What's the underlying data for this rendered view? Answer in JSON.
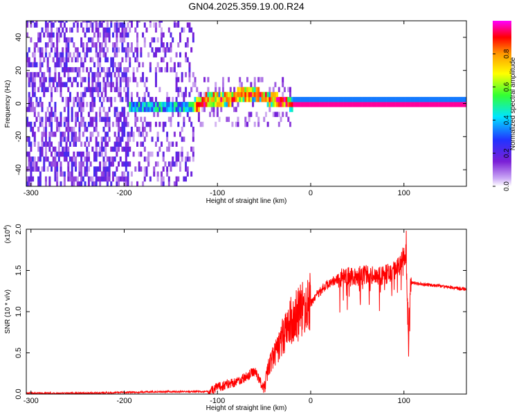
{
  "title": "GN04.2025.359.19.00.R24",
  "chart_data": [
    {
      "type": "heatmap",
      "xlabel": "Height of straight line (km)",
      "ylabel": "Frequency (Hz)",
      "xlim": [
        -305,
        167
      ],
      "ylim": [
        -50,
        50
      ],
      "x_ticks": [
        -300,
        -200,
        -100,
        0,
        100
      ],
      "y_ticks": [
        -40,
        -20,
        0,
        20,
        40
      ],
      "colorbar_label": "Normalized spectral amplitude",
      "colorbar_ticks": [
        0.0,
        0.2,
        0.4,
        0.6,
        0.8
      ],
      "colorbar_range": [
        0,
        1
      ],
      "colormap": [
        "#ffffff",
        "#7b1fd6",
        "#2233ff",
        "#00e5ff",
        "#33ff33",
        "#ffff00",
        "#ff9900",
        "#ff0000",
        "#ff00ff"
      ],
      "regions": [
        {
          "x": [
            -305,
            -195
          ],
          "content": "broadband noise, amplitude 0.05-0.2"
        },
        {
          "x": [
            -195,
            -125
          ],
          "content": "noise with weak signal near 0 Hz"
        },
        {
          "x": [
            -125,
            -20
          ],
          "content": "signal band drifting from 0 to about 6 Hz and back"
        },
        {
          "x": [
            -20,
            167
          ],
          "content": "narrow strong signal at 0 Hz, amplitude 1.0"
        }
      ],
      "signal_track": {
        "x": [
          -195,
          -160,
          -130,
          -110,
          -90,
          -70,
          -60,
          -50,
          -40,
          -30,
          -20,
          0,
          100,
          167
        ],
        "freq": [
          -3,
          -2,
          -1,
          2,
          3,
          6,
          5,
          4,
          2,
          1,
          0,
          0,
          0,
          0
        ]
      }
    },
    {
      "type": "line",
      "xlabel": "Height of straight line (km)",
      "ylabel": "SNR (10 * v/v)",
      "y_multiplier": "(x10",
      "y_multiplier_exp": "4",
      "xlim": [
        -305,
        167
      ],
      "ylim": [
        0,
        2.0
      ],
      "x_ticks": [
        -300,
        -200,
        -100,
        0,
        100
      ],
      "y_ticks": [
        "0.0",
        "0.5",
        "1.0",
        "1.5",
        "2.0"
      ],
      "color": "#ff0000",
      "series": [
        {
          "x": [
            -305,
            -250,
            -200,
            -150,
            -110,
            -100,
            -90,
            -80,
            -70,
            -60,
            -55,
            -50,
            -45,
            -40,
            -35,
            -30,
            -25,
            -20,
            -15,
            -10,
            -5,
            0,
            5,
            10,
            20,
            30,
            40,
            50,
            60,
            70,
            80,
            90,
            95,
            100,
            103,
            105,
            107,
            110,
            120,
            140,
            167
          ],
          "y": [
            0.01,
            0.01,
            0.02,
            0.03,
            0.03,
            0.08,
            0.12,
            0.15,
            0.2,
            0.28,
            0.18,
            0.05,
            0.35,
            0.45,
            0.55,
            0.7,
            0.8,
            0.9,
            0.95,
            1.0,
            1.05,
            1.1,
            1.18,
            1.25,
            1.35,
            1.4,
            1.42,
            1.43,
            1.45,
            1.42,
            1.45,
            1.5,
            1.55,
            1.7,
            1.45,
            0.5,
            1.35,
            1.35,
            1.33,
            1.31,
            1.27
          ]
        }
      ]
    }
  ]
}
